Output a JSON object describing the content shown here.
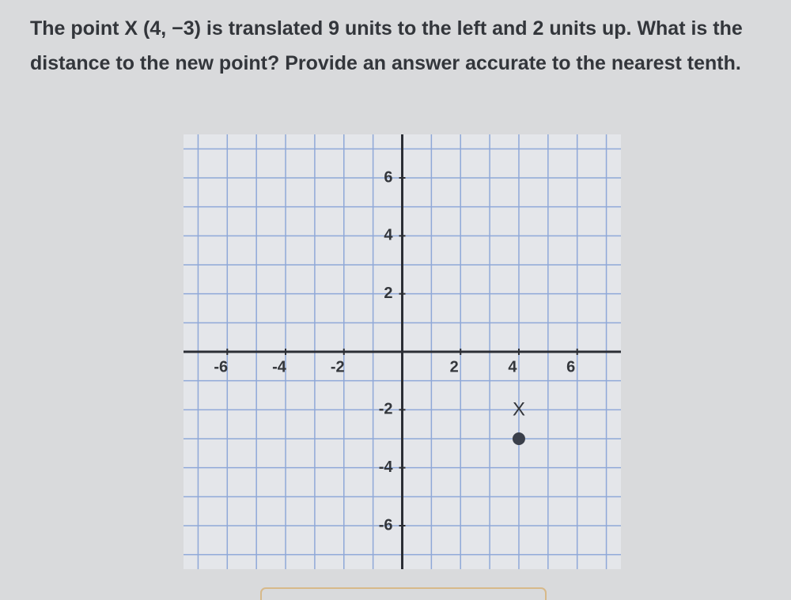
{
  "chart_data": {
    "type": "scatter",
    "title": "The point X (4, −3) is translated 9 units to the left and 2 units up. What is the distance to the new point? Provide an answer accurate to the nearest tenth.",
    "x": [
      4
    ],
    "y": [
      -3
    ],
    "point_labels": [
      "X"
    ],
    "color": "#3a3f4a",
    "xlim": [
      -7.5,
      7.5
    ],
    "ylim": [
      -7.5,
      7.5
    ],
    "xticks": [
      -6,
      -4,
      -2,
      2,
      4,
      6
    ],
    "yticks": [
      6,
      4,
      2,
      -2,
      -4,
      -6
    ],
    "xgrid": [
      -7,
      -6,
      -5,
      -4,
      -3,
      -2,
      -1,
      1,
      2,
      3,
      4,
      5,
      6,
      7
    ],
    "ygrid": [
      -7,
      -6,
      -5,
      -4,
      -3,
      -2,
      -1,
      1,
      2,
      3,
      4,
      5,
      6,
      7
    ],
    "grid": true
  }
}
